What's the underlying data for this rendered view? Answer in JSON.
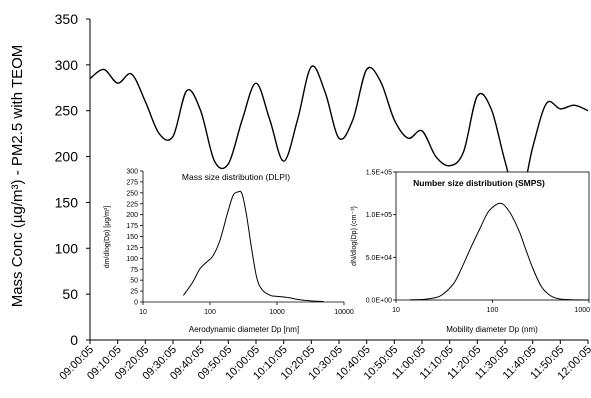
{
  "chart_data": [
    {
      "type": "line",
      "ylabel": "Mass Conc (µg/m³) - PM2.5 with TEOM",
      "ylim": [
        0,
        350
      ],
      "yticks": [
        "0",
        "50",
        "100",
        "150",
        "200",
        "250",
        "300",
        "350"
      ],
      "x_ticks": [
        "09:00:05",
        "09:10:05",
        "09:20:05",
        "09:30:05",
        "09:40:05",
        "09:50:05",
        "10:00:05",
        "10:10:05",
        "10:20:05",
        "10:30:05",
        "10:40:05",
        "10:50:05",
        "11:00:05",
        "11:10:05",
        "11:20:05",
        "11:30:05",
        "11:40:05",
        "11:50:05",
        "12:00:05"
      ],
      "x": [
        "09:00:05",
        "09:05:05",
        "09:10:05",
        "09:15:05",
        "09:20:05",
        "09:25:05",
        "09:30:05",
        "09:35:05",
        "09:40:05",
        "09:45:05",
        "09:50:05",
        "09:55:05",
        "10:00:05",
        "10:05:05",
        "10:10:05",
        "10:15:05",
        "10:20:05",
        "10:25:05",
        "10:30:05",
        "10:35:05",
        "10:40:05",
        "10:45:05",
        "10:50:05",
        "10:55:05",
        "11:00:05",
        "11:05:05",
        "11:10:05",
        "11:15:05",
        "11:20:05",
        "11:25:05",
        "11:30:05",
        "11:35:05",
        "11:40:05",
        "11:45:05",
        "11:50:05",
        "11:55:05",
        "12:00:05"
      ],
      "values": [
        285,
        295,
        280,
        290,
        260,
        225,
        222,
        272,
        250,
        195,
        192,
        240,
        280,
        240,
        195,
        240,
        298,
        270,
        220,
        240,
        295,
        282,
        240,
        220,
        228,
        200,
        190,
        205,
        266,
        252,
        195,
        148,
        210,
        258,
        252,
        256,
        250
      ]
    },
    {
      "type": "line",
      "title": "Mass size distribution (DLPI)",
      "xlabel": "Aerodynamic diameter Dp [nm]",
      "ylabel": "dm/dlog(Dp) [µg/m³]",
      "xscale": "log",
      "xlim": [
        10,
        10000
      ],
      "ylim": [
        0,
        300
      ],
      "xticks": [
        "10",
        "100",
        "1000",
        "10000"
      ],
      "yticks": [
        "0",
        "25",
        "50",
        "75",
        "100",
        "125",
        "150",
        "175",
        "200",
        "225",
        "250",
        "275",
        "300"
      ],
      "x": [
        40,
        55,
        70,
        90,
        110,
        140,
        180,
        220,
        260,
        300,
        350,
        420,
        500,
        600,
        800,
        1000,
        1500,
        2000,
        3000,
        5000
      ],
      "values": [
        15,
        45,
        75,
        92,
        105,
        140,
        200,
        243,
        252,
        248,
        200,
        120,
        55,
        28,
        15,
        13,
        10,
        6,
        3,
        1
      ]
    },
    {
      "type": "line",
      "title": "Number size distribution (SMPS)",
      "xlabel": "Mobility diameter Dp (nm)",
      "ylabel": "dN/dlog(Dp) (cm⁻³)",
      "xscale": "log",
      "xlim": [
        10,
        1000
      ],
      "ylim": [
        0,
        150000
      ],
      "xticks": [
        "10",
        "100",
        "1000"
      ],
      "yticks": [
        "0.0E+00",
        "5.0E+04",
        "1.0E+05",
        "1.5E+05"
      ],
      "x": [
        14,
        17,
        20,
        25,
        30,
        40,
        50,
        60,
        75,
        90,
        110,
        125,
        140,
        160,
        190,
        220,
        260,
        320,
        400,
        500,
        650,
        800,
        1000
      ],
      "values": [
        200,
        400,
        900,
        2500,
        6000,
        20000,
        42000,
        62000,
        85000,
        103000,
        112000,
        113000,
        108000,
        98000,
        80000,
        60000,
        38000,
        16000,
        5000,
        1200,
        300,
        100,
        50
      ]
    }
  ]
}
